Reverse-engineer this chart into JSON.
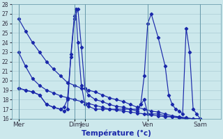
{
  "xlabel": "Température (°c)",
  "ylim": [
    16,
    28
  ],
  "yticks": [
    16,
    17,
    18,
    19,
    20,
    21,
    22,
    23,
    24,
    25,
    26,
    27,
    28
  ],
  "xlim": [
    0,
    30
  ],
  "background_color": "#cce8ec",
  "grid_color": "#aaccd4",
  "line_color": "#1a28aa",
  "day_labels": [
    "Mer",
    "",
    "Dim",
    "Jeu",
    "",
    "Ven",
    "",
    "Sam"
  ],
  "xtick_labels": [
    "Mer",
    "Dim",
    "Jeu",
    "Ven",
    "Sam"
  ],
  "xtick_pos": [
    1,
    9,
    10.5,
    19.5,
    27
  ],
  "vline_pos": [
    1,
    9,
    10.5,
    19.5,
    27
  ],
  "series": [
    {
      "x": [
        1,
        2,
        3,
        4,
        5,
        6,
        7,
        8,
        9,
        10,
        11,
        12,
        13,
        14,
        15,
        16,
        17,
        18,
        19,
        20,
        21,
        22,
        23,
        24,
        25,
        26,
        27
      ],
      "y": [
        26.5,
        25.2,
        24.0,
        23.0,
        22.0,
        21.2,
        20.5,
        19.8,
        19.5,
        19.2,
        19.0,
        18.8,
        18.5,
        18.2,
        18.0,
        17.8,
        17.5,
        17.2,
        17.0,
        16.8,
        16.7,
        16.5,
        16.3,
        16.2,
        16.1,
        16.0,
        16.0
      ]
    },
    {
      "x": [
        1,
        2,
        3,
        4,
        5,
        6,
        7,
        8,
        9,
        10,
        11,
        12,
        13,
        14,
        15,
        16,
        17,
        18,
        19,
        20,
        21,
        22,
        23,
        24,
        25,
        26,
        27
      ],
      "y": [
        23.0,
        21.5,
        20.2,
        19.5,
        19.0,
        18.7,
        18.4,
        18.2,
        18.0,
        17.8,
        17.6,
        17.4,
        17.2,
        17.0,
        16.9,
        16.8,
        16.7,
        16.6,
        16.5,
        16.4,
        16.3,
        16.2,
        16.2,
        16.1,
        16.0,
        16.0,
        16.0
      ]
    },
    {
      "x": [
        1,
        2,
        3,
        4,
        5,
        6,
        7,
        7.5,
        8,
        8.5,
        9,
        9.5,
        10,
        10.5,
        11,
        12,
        13,
        14,
        15,
        16,
        17,
        18,
        18.5,
        19,
        19.5,
        20,
        21,
        22,
        22.5,
        23,
        23.5,
        24,
        24.5,
        25,
        25.5,
        26,
        26.5,
        27
      ],
      "y": [
        19.2,
        19.0,
        18.8,
        18.5,
        17.5,
        17.2,
        17.0,
        17.2,
        18.0,
        22.5,
        26.5,
        27.5,
        23.5,
        19.2,
        18.5,
        18.0,
        17.8,
        17.5,
        17.3,
        17.2,
        17.0,
        16.8,
        17.5,
        20.5,
        26.0,
        27.0,
        24.5,
        21.5,
        18.5,
        17.5,
        17.0,
        16.8,
        16.5,
        25.5,
        23.0,
        17.0,
        16.5,
        16.0
      ]
    },
    {
      "x": [
        1,
        2,
        3,
        4,
        5,
        6,
        7,
        7.5,
        8,
        8.5,
        9,
        9.2,
        9.5,
        10,
        10.5,
        11,
        12,
        13,
        14,
        15,
        16,
        17,
        18,
        18.5,
        19,
        19.5,
        20,
        21,
        22,
        23,
        24,
        25,
        26,
        27
      ],
      "y": [
        19.2,
        19.0,
        18.8,
        18.5,
        17.5,
        17.2,
        17.0,
        16.8,
        17.0,
        22.8,
        26.8,
        27.5,
        24.0,
        19.5,
        17.5,
        17.3,
        17.0,
        17.0,
        17.0,
        17.0,
        17.0,
        17.0,
        17.0,
        17.5,
        18.0,
        16.5,
        16.5,
        16.5,
        16.3,
        16.2,
        16.1,
        16.0,
        16.0,
        16.0
      ]
    }
  ]
}
